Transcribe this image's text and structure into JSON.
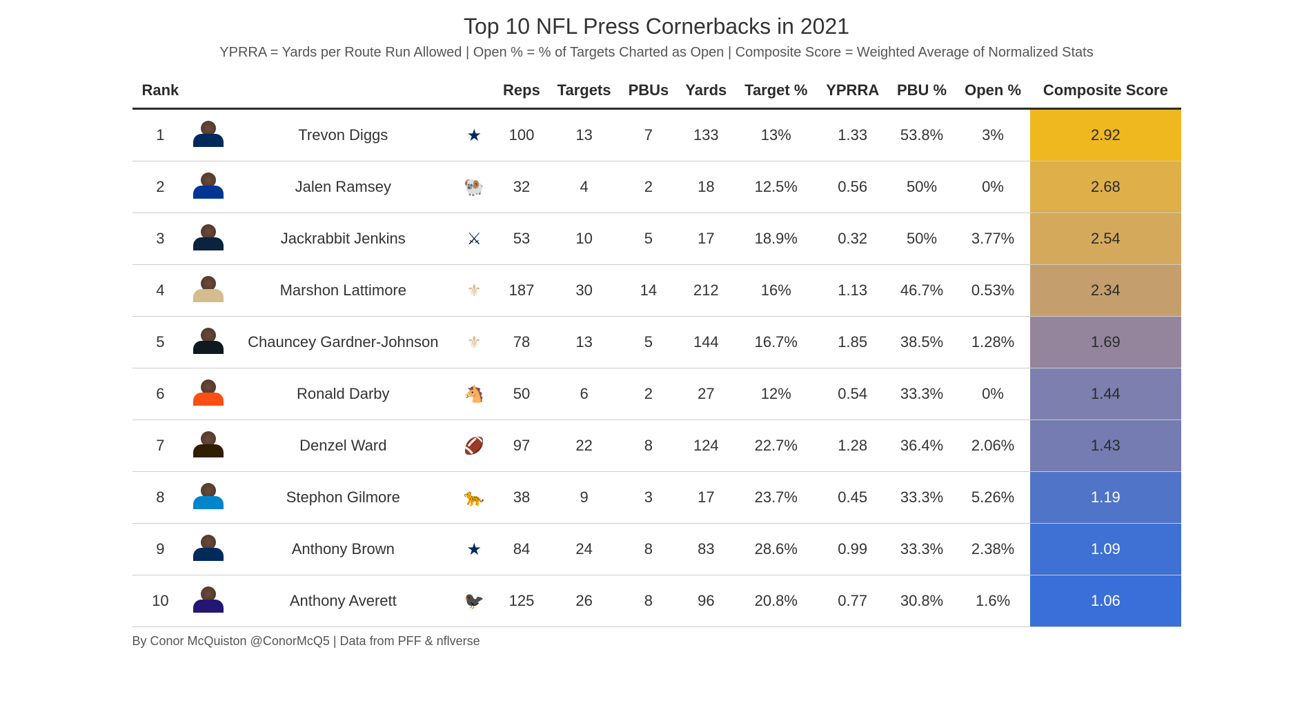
{
  "title": "Top 10 NFL Press Cornerbacks in 2021",
  "subtitle": "YPRRA = Yards per Route Run Allowed | Open % = % of Targets Charted as Open | Composite Score = Weighted Average of Normalized Stats",
  "footer": "By Conor McQuiston @ConorMcQ5 | Data from PFF & nflverse",
  "columns": [
    "Rank",
    "",
    "",
    "",
    "Reps",
    "Targets",
    "PBUs",
    "Yards",
    "Target %",
    "YPRRA",
    "PBU %",
    "Open %",
    "Composite Score"
  ],
  "composite_text_colors": {
    "dark": "#2b2b2b",
    "light": "#ffffff"
  },
  "rows": [
    {
      "rank": "1",
      "name": "Trevon Diggs",
      "team": "DAL",
      "reps": "100",
      "targets": "13",
      "pbus": "7",
      "yards": "133",
      "target_pct": "13%",
      "yprra": "1.33",
      "pbu_pct": "53.8%",
      "open_pct": "3%",
      "composite": "2.92",
      "composite_bg": "#f0b81f",
      "composite_fg": "dark",
      "jersey": "#002a5c"
    },
    {
      "rank": "2",
      "name": "Jalen Ramsey",
      "team": "LAR",
      "reps": "32",
      "targets": "4",
      "pbus": "2",
      "yards": "18",
      "target_pct": "12.5%",
      "yprra": "0.56",
      "pbu_pct": "50%",
      "open_pct": "0%",
      "composite": "2.68",
      "composite_bg": "#dfaf4a",
      "composite_fg": "dark",
      "jersey": "#003594"
    },
    {
      "rank": "3",
      "name": "Jackrabbit Jenkins",
      "team": "TEN",
      "reps": "53",
      "targets": "10",
      "pbus": "5",
      "yards": "17",
      "target_pct": "18.9%",
      "yprra": "0.32",
      "pbu_pct": "50%",
      "open_pct": "3.77%",
      "composite": "2.54",
      "composite_bg": "#d5a95b",
      "composite_fg": "dark",
      "jersey": "#0c2340"
    },
    {
      "rank": "4",
      "name": "Marshon Lattimore",
      "team": "NO",
      "reps": "187",
      "targets": "30",
      "pbus": "14",
      "yards": "212",
      "target_pct": "16%",
      "yprra": "1.13",
      "pbu_pct": "46.7%",
      "open_pct": "0.53%",
      "composite": "2.34",
      "composite_bg": "#c49e6c",
      "composite_fg": "dark",
      "jersey": "#d3bc8d"
    },
    {
      "rank": "5",
      "name": "Chauncey Gardner-Johnson",
      "team": "NO",
      "reps": "78",
      "targets": "13",
      "pbus": "5",
      "yards": "144",
      "target_pct": "16.7%",
      "yprra": "1.85",
      "pbu_pct": "38.5%",
      "open_pct": "1.28%",
      "composite": "1.69",
      "composite_bg": "#94859d",
      "composite_fg": "dark",
      "jersey": "#101820"
    },
    {
      "rank": "6",
      "name": "Ronald Darby",
      "team": "DEN",
      "reps": "50",
      "targets": "6",
      "pbus": "2",
      "yards": "27",
      "target_pct": "12%",
      "yprra": "0.54",
      "pbu_pct": "33.3%",
      "open_pct": "0%",
      "composite": "1.44",
      "composite_bg": "#7d7fae",
      "composite_fg": "dark",
      "jersey": "#fb4f14"
    },
    {
      "rank": "7",
      "name": "Denzel Ward",
      "team": "CLE",
      "reps": "97",
      "targets": "22",
      "pbus": "8",
      "yards": "124",
      "target_pct": "22.7%",
      "yprra": "1.28",
      "pbu_pct": "36.4%",
      "open_pct": "2.06%",
      "composite": "1.43",
      "composite_bg": "#757cb1",
      "composite_fg": "dark",
      "jersey": "#311d00"
    },
    {
      "rank": "8",
      "name": "Stephon Gilmore",
      "team": "CAR",
      "reps": "38",
      "targets": "9",
      "pbus": "3",
      "yards": "17",
      "target_pct": "23.7%",
      "yprra": "0.45",
      "pbu_pct": "33.3%",
      "open_pct": "5.26%",
      "composite": "1.19",
      "composite_bg": "#4f74c8",
      "composite_fg": "light",
      "jersey": "#0085ca"
    },
    {
      "rank": "9",
      "name": "Anthony Brown",
      "team": "DAL",
      "reps": "84",
      "targets": "24",
      "pbus": "8",
      "yards": "83",
      "target_pct": "28.6%",
      "yprra": "0.99",
      "pbu_pct": "33.3%",
      "open_pct": "2.38%",
      "composite": "1.09",
      "composite_bg": "#3f70d3",
      "composite_fg": "light",
      "jersey": "#002a5c"
    },
    {
      "rank": "10",
      "name": "Anthony Averett",
      "team": "BAL",
      "reps": "125",
      "targets": "26",
      "pbus": "8",
      "yards": "96",
      "target_pct": "20.8%",
      "yprra": "0.77",
      "pbu_pct": "30.8%",
      "open_pct": "1.6%",
      "composite": "1.06",
      "composite_bg": "#3a6ed8",
      "composite_fg": "light",
      "jersey": "#241773"
    }
  ],
  "team_logos": {
    "DAL": {
      "glyph": "★",
      "color": "#002a5c",
      "bg": ""
    },
    "LAR": {
      "glyph": "🐏",
      "color": "#003594",
      "bg": ""
    },
    "TEN": {
      "glyph": "⚔",
      "color": "#0c2340",
      "bg": ""
    },
    "NO": {
      "glyph": "⚜",
      "color": "#d3bc8d",
      "bg": ""
    },
    "DEN": {
      "glyph": "🐴",
      "color": "#fb4f14",
      "bg": ""
    },
    "CLE": {
      "glyph": "🏈",
      "color": "#ff3c00",
      "bg": ""
    },
    "CAR": {
      "glyph": "🐆",
      "color": "#0085ca",
      "bg": ""
    },
    "BAL": {
      "glyph": "🐦‍⬛",
      "color": "#241773",
      "bg": ""
    }
  }
}
